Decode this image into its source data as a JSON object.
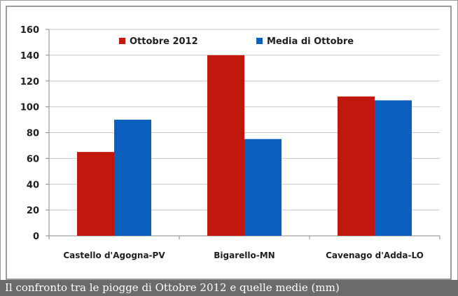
{
  "caption": "Il confronto tra le piogge di Ottobre 2012 e quelle medie (mm)",
  "chart_data": {
    "type": "bar",
    "categories": [
      "Castello d'Agogna-PV",
      "Bigarello-MN",
      "Cavenago d'Adda-LO"
    ],
    "series": [
      {
        "name": "Ottobre 2012",
        "values": [
          65,
          140,
          108
        ],
        "color": "#c0180c"
      },
      {
        "name": "Media di Ottobre",
        "values": [
          90,
          75,
          105
        ],
        "color": "#0a5fbf"
      }
    ],
    "yticks": [
      0,
      20,
      40,
      60,
      80,
      100,
      120,
      140,
      160
    ],
    "ylim": [
      0,
      160
    ],
    "grid": true,
    "legend_position": "top"
  }
}
